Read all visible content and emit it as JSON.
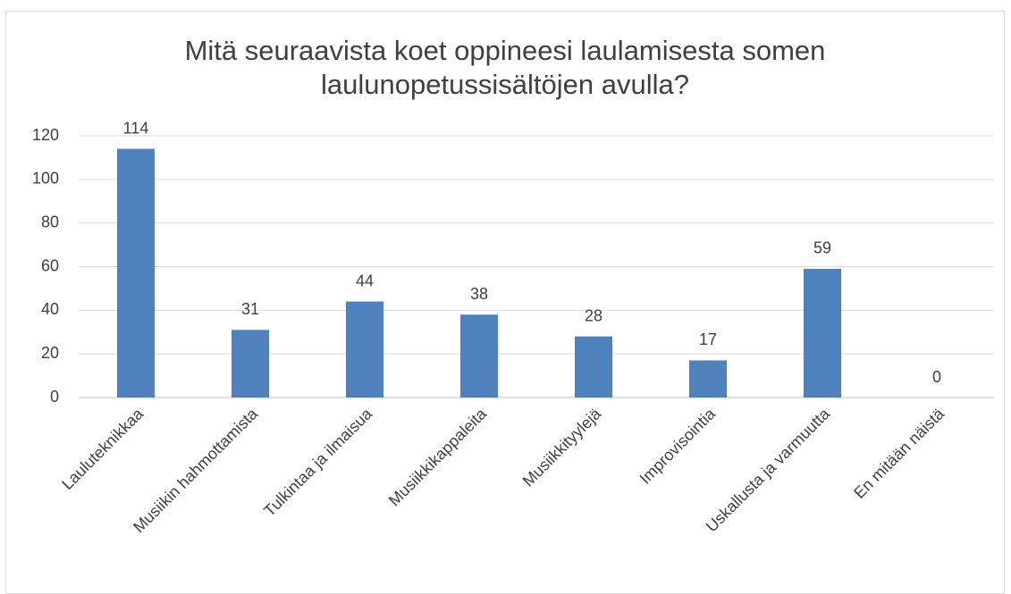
{
  "chart_data": {
    "type": "bar",
    "title": "Mitä seuraavista koet oppineesi laulamisesta somen laulunopetussisältöjen avulla?",
    "categories": [
      "Lauluteknikkaa",
      "Musiikin hahmottamista",
      "Tulkintaa ja ilmaisua",
      "Musiikkikappaleita",
      "Musiikkityylejä",
      "Improvisointia",
      "Uskallusta ja varmuutta",
      "En mitään näistä"
    ],
    "values": [
      114,
      31,
      44,
      38,
      28,
      17,
      59,
      0
    ],
    "color": "#4f81bd",
    "ylim": [
      0,
      120
    ],
    "yticks": [
      0,
      20,
      40,
      60,
      80,
      100,
      120
    ],
    "grid": true
  }
}
